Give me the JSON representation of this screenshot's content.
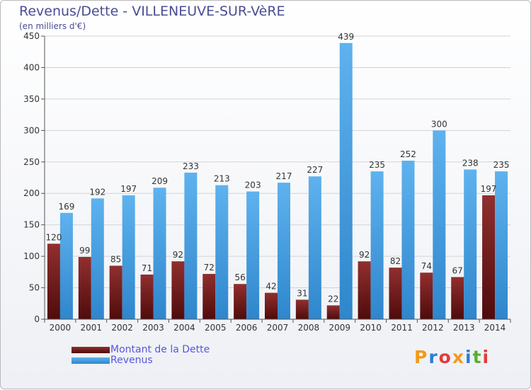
{
  "header": {
    "title": "Revenus/Dette - VILLENEUVE-SUR-VèRE",
    "subtitle": "(en milliers d'€)"
  },
  "legend": {
    "items": [
      {
        "label": "Montant de la Dette",
        "color": "#6e1a1a"
      },
      {
        "label": "Revenus",
        "color": "#4ba3e6"
      }
    ]
  },
  "logo": {
    "text": "Proxiti",
    "letter_colors": [
      "#f39a1a",
      "#2a7fd4",
      "#e23b3b",
      "#f39a1a",
      "#2a7fd4",
      "#5ab02e",
      "#e23b3b"
    ]
  },
  "colors": {
    "dette_top": "#912f2f",
    "dette_bottom": "#4f0b0b",
    "revenus_top": "#5eb2ee",
    "revenus_bottom": "#2f86cc",
    "grid": "#d3d3d3",
    "axis_text": "#333333"
  },
  "chart_data": {
    "type": "bar",
    "categories": [
      "2000",
      "2001",
      "2002",
      "2003",
      "2004",
      "2005",
      "2006",
      "2007",
      "2008",
      "2009",
      "2010",
      "2011",
      "2012",
      "2013",
      "2014"
    ],
    "series": [
      {
        "name": "Montant de la Dette",
        "values": [
          120,
          99,
          85,
          71,
          92,
          72,
          56,
          42,
          31,
          22,
          92,
          82,
          74,
          67,
          197
        ]
      },
      {
        "name": "Revenus",
        "values": [
          169,
          192,
          197,
          209,
          233,
          213,
          203,
          217,
          227,
          439,
          235,
          252,
          300,
          238,
          235
        ]
      }
    ],
    "title": "Revenus/Dette - VILLENEUVE-SUR-VèRE",
    "ylabel": "(en milliers d'€)",
    "xlabel": "",
    "ylim": [
      0,
      450
    ],
    "yticks": [
      0,
      50,
      100,
      150,
      200,
      250,
      300,
      350,
      400,
      450
    ],
    "grid": true,
    "legend_position": "bottom-left"
  }
}
